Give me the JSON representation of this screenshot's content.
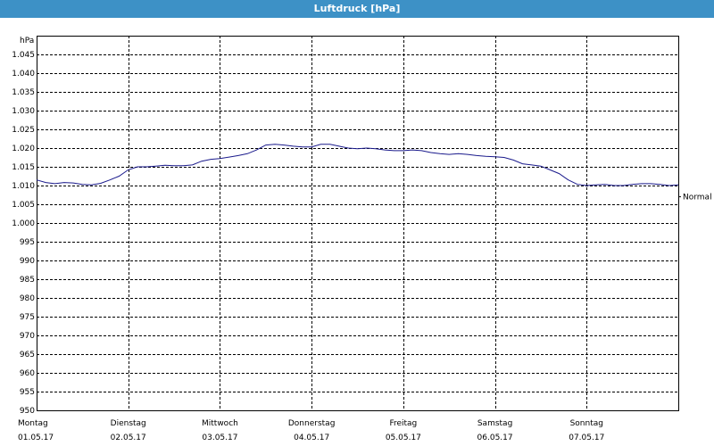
{
  "chart_data": {
    "type": "line",
    "title": "Luftdruck [hPa]",
    "y_unit": "hPa",
    "ylim": [
      950,
      1050
    ],
    "y_ticks": [
      "1.045",
      "1.040",
      "1.035",
      "1.030",
      "1.025",
      "1.020",
      "1.015",
      "1.010",
      "1.005",
      "1.000",
      "995",
      "990",
      "985",
      "980",
      "975",
      "970",
      "965",
      "960",
      "955",
      "950"
    ],
    "y_tick_values": [
      1045,
      1040,
      1035,
      1030,
      1025,
      1020,
      1015,
      1010,
      1005,
      1000,
      995,
      990,
      985,
      980,
      975,
      970,
      965,
      960,
      955,
      950
    ],
    "x_days": [
      {
        "day": "Montag",
        "date": "01.05.17"
      },
      {
        "day": "Dienstag",
        "date": "02.05.17"
      },
      {
        "day": "Mittwoch",
        "date": "03.05.17"
      },
      {
        "day": "Donnerstag",
        "date": "04.05.17"
      },
      {
        "day": "Freitag",
        "date": "05.05.17"
      },
      {
        "day": "Samstag",
        "date": "06.05.17"
      },
      {
        "day": "Sonntag",
        "date": "07.05.17"
      }
    ],
    "xlim_days": [
      0,
      7
    ],
    "grid": true,
    "line_color": "#1a1a8c",
    "right_label": {
      "text": "Normal",
      "value": 1007
    },
    "series": [
      {
        "x": [
          0,
          0.1,
          0.2,
          0.3,
          0.4,
          0.5,
          0.6,
          0.7,
          0.8,
          0.9,
          1.0,
          1.1,
          1.2,
          1.3,
          1.4,
          1.5,
          1.6,
          1.7,
          1.8,
          1.9,
          2.0,
          2.1,
          2.2,
          2.3,
          2.4,
          2.5,
          2.6,
          2.7,
          2.8,
          2.9,
          3.0,
          3.1,
          3.2,
          3.3,
          3.4,
          3.5,
          3.6,
          3.7,
          3.8,
          3.9,
          4.0,
          4.1,
          4.2,
          4.3,
          4.4,
          4.5,
          4.6,
          4.7,
          4.8,
          4.9,
          5.0,
          5.1,
          5.2,
          5.3,
          5.4,
          5.5,
          5.6,
          5.7,
          5.8,
          5.9,
          6.0,
          6.1,
          6.2,
          6.3,
          6.4,
          6.5,
          6.6,
          6.7,
          6.8,
          6.9,
          7.0
        ],
        "y": [
          1011.5,
          1010.8,
          1010.5,
          1010.8,
          1010.7,
          1010.3,
          1010.2,
          1010.6,
          1011.5,
          1012.5,
          1014.2,
          1015.0,
          1015.0,
          1015.2,
          1015.4,
          1015.3,
          1015.3,
          1015.5,
          1016.5,
          1017.0,
          1017.2,
          1017.6,
          1018.0,
          1018.5,
          1019.5,
          1020.8,
          1021.0,
          1020.8,
          1020.5,
          1020.3,
          1020.3,
          1021.0,
          1021.0,
          1020.5,
          1020.0,
          1019.8,
          1020.0,
          1019.8,
          1019.5,
          1019.3,
          1019.3,
          1019.5,
          1019.3,
          1018.8,
          1018.5,
          1018.3,
          1018.5,
          1018.3,
          1018.0,
          1017.8,
          1017.7,
          1017.5,
          1016.8,
          1015.8,
          1015.5,
          1015.2,
          1014.2,
          1013.2,
          1011.5,
          1010.3,
          1010.0,
          1010.2,
          1010.3,
          1010.0,
          1010.0,
          1010.3,
          1010.5,
          1010.5,
          1010.3,
          1010.0,
          1010.2
        ]
      }
    ]
  }
}
